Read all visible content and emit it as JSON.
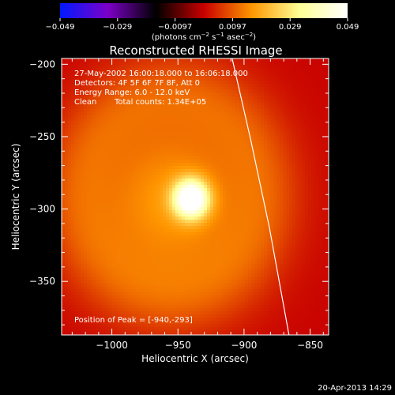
{
  "chart_data": {
    "type": "heatmap",
    "title": "Reconstructed RHESSI Image",
    "xlabel": "Heliocentric X (arcsec)",
    "ylabel": "Heliocentric Y (arcsec)",
    "xlim": [
      -1038,
      -836
    ],
    "ylim": [
      -387,
      -196
    ],
    "x_ticks": [
      {
        "value": -1000,
        "label": "−1000"
      },
      {
        "value": -950,
        "label": "−950"
      },
      {
        "value": -900,
        "label": "−900"
      },
      {
        "value": -850,
        "label": "−850"
      }
    ],
    "y_ticks": [
      {
        "value": -200,
        "label": "−200"
      },
      {
        "value": -250,
        "label": "−250"
      },
      {
        "value": -300,
        "label": "−300"
      },
      {
        "value": -350,
        "label": "−350"
      }
    ],
    "annotations": [
      "27-May-2002 16:00:18.000 to 16:06:18.000",
      "Detectors: 4F 5F 6F 7F 8F, Att 0",
      "Energy Range: 6.0 - 12.0 keV",
      "Clean",
      "Total counts: 1.34E+05"
    ],
    "peak_label": "Position of Peak = [-940,-293]",
    "peak": {
      "x": -940,
      "y": -293
    },
    "colorbar": {
      "ticks": [
        "−0.049",
        "−0.029",
        "−0.0097",
        "0.0097",
        "0.029",
        "0.049"
      ],
      "range": [
        -0.049,
        0.049
      ],
      "colormap": "blue-purple-black-red-yellow-white",
      "colors": [
        "#0019ff",
        "#7d00c8",
        "#000000",
        "#c80000",
        "#ff9600",
        "#ffff96",
        "#ffffff"
      ]
    },
    "units_label": {
      "base": "(photons cm",
      "sup1": "−2",
      "mid1": " s",
      "sup2": "−1",
      "mid2": " asec",
      "sup3": "−2",
      "end": ")"
    },
    "limb": {
      "description_points": [
        [
          -909,
          -196
        ],
        [
          -895,
          -252
        ],
        [
          -881,
          -312
        ],
        [
          -866,
          -387
        ]
      ],
      "color": "#ffffff"
    },
    "sources": [
      {
        "x": -940,
        "y": -293,
        "amplitude": 0.049,
        "sigma": 9
      },
      {
        "x": -955,
        "y": -295,
        "amplitude": 0.013,
        "sigma": 38
      }
    ]
  },
  "footer": {
    "timestamp": "20-Apr-2013 14:29"
  }
}
